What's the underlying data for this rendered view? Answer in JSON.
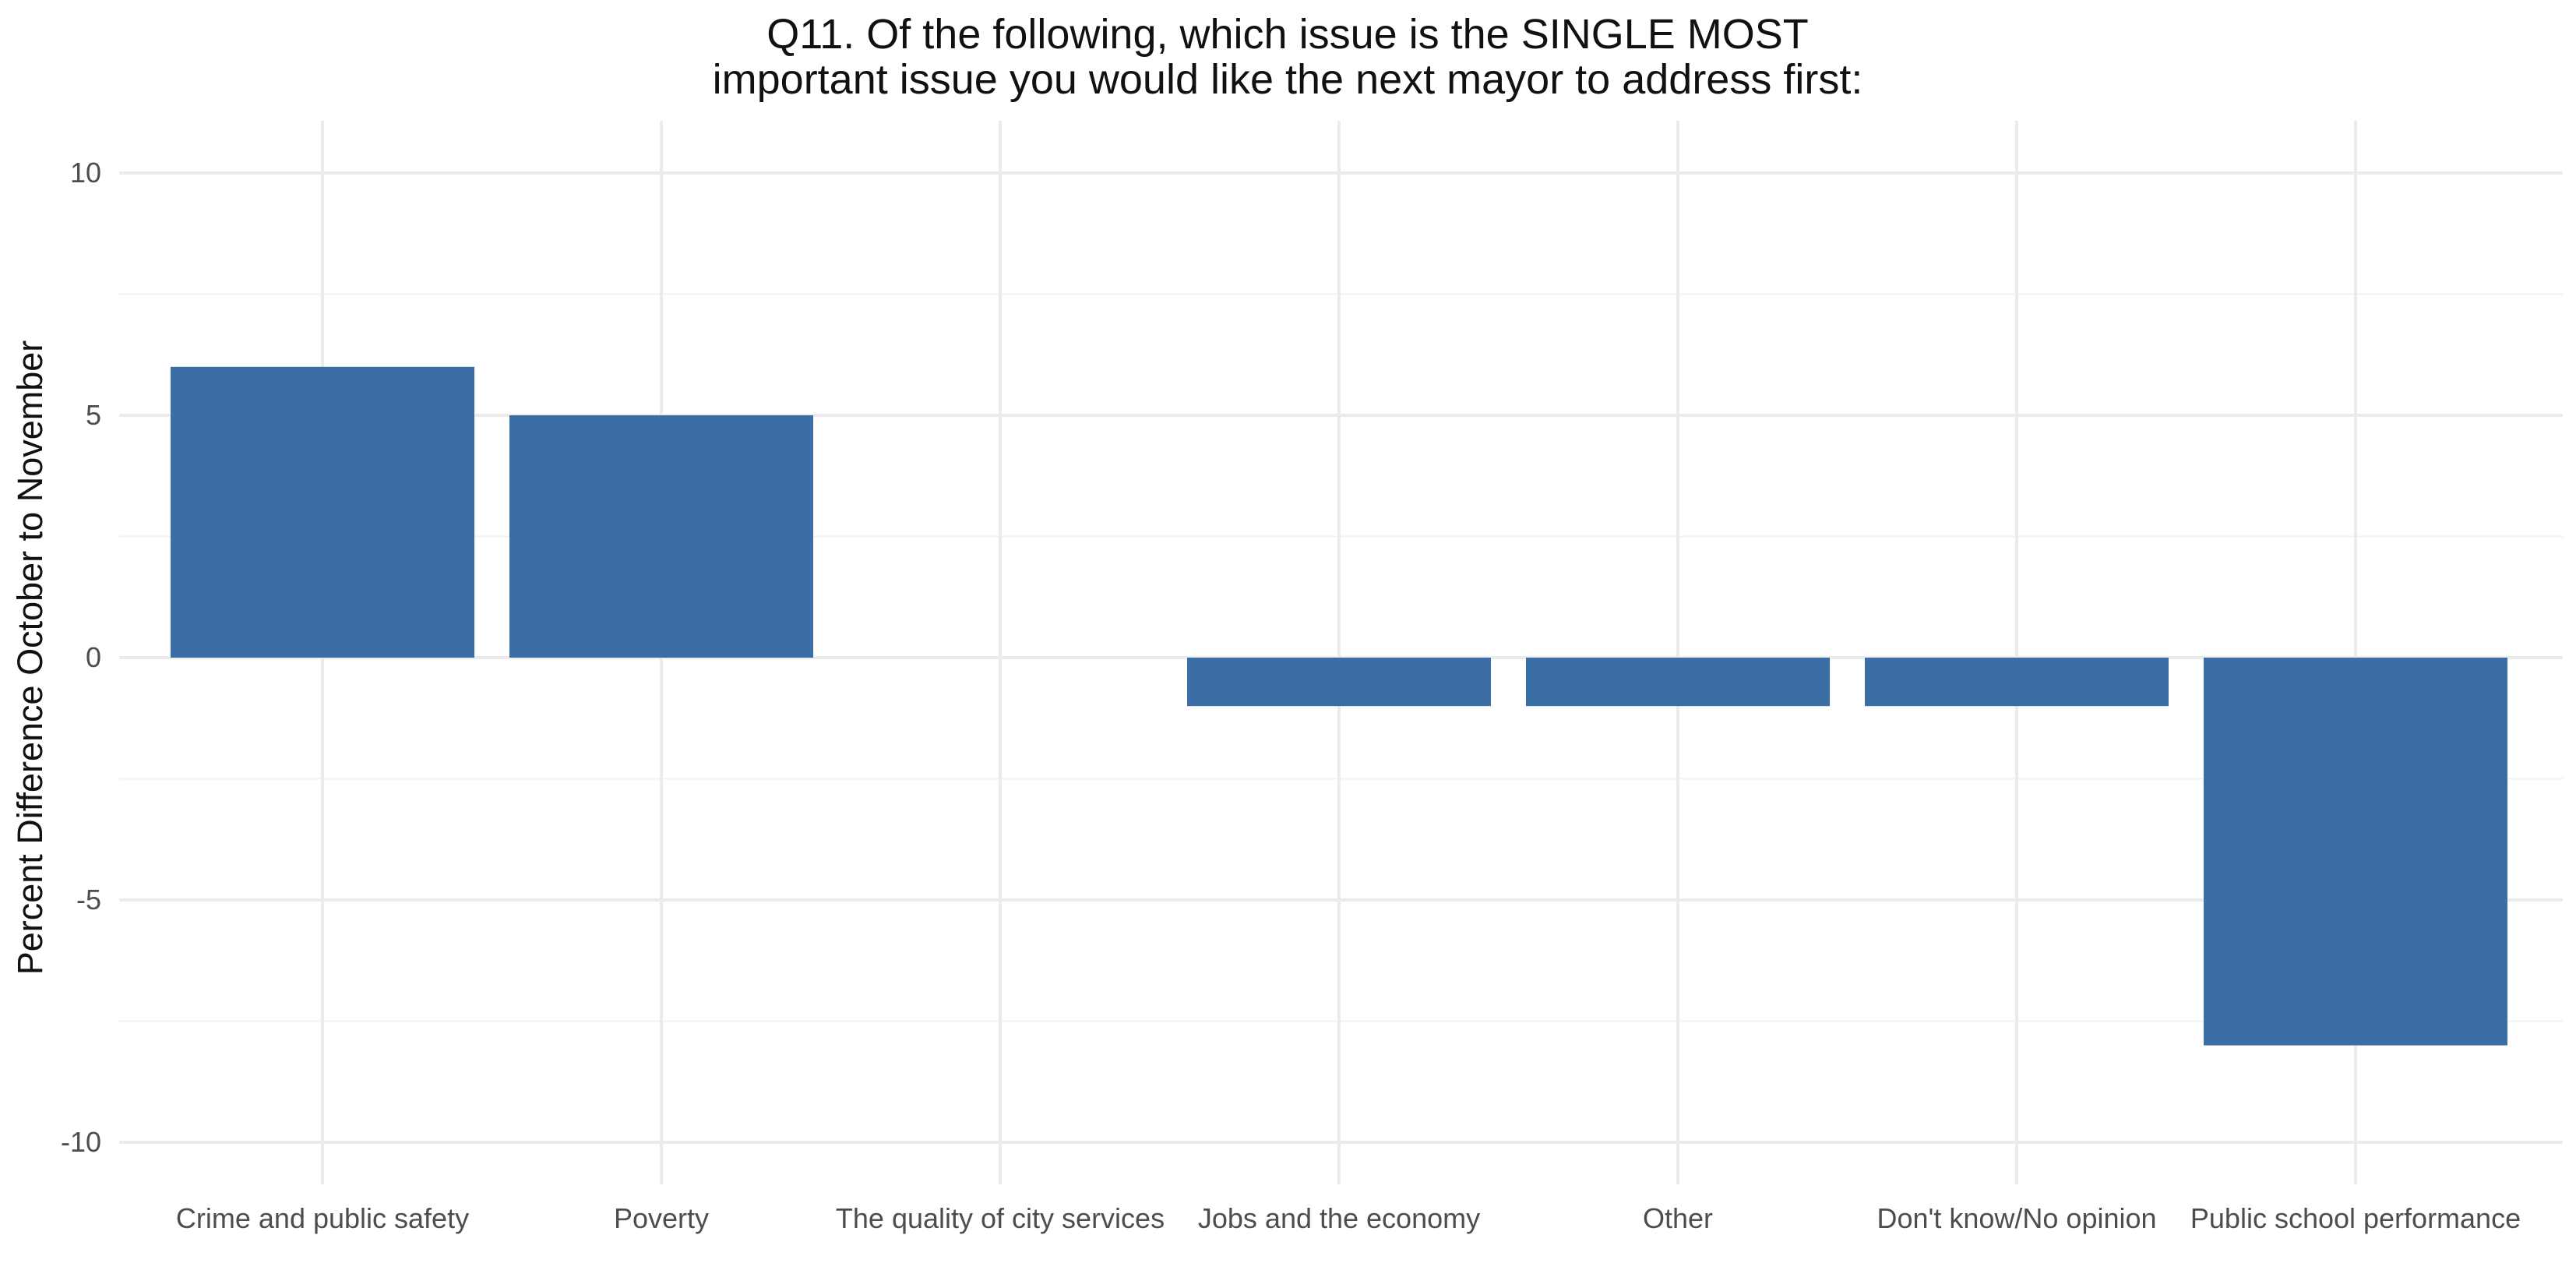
{
  "chart_data": {
    "type": "bar",
    "title_lines": [
      "Q11. Of the following, which issue is the SINGLE MOST",
      "important issue you would like the next mayor to address first:"
    ],
    "xlabel": "",
    "ylabel": "Percent Difference October to November",
    "categories": [
      "Crime and public safety",
      "Poverty",
      "The quality of city services",
      "Jobs and the economy",
      "Other",
      "Don't know/No opinion",
      "Public school performance"
    ],
    "values": [
      6,
      5,
      0,
      -1,
      -1,
      -1,
      -8
    ],
    "ylim": [
      -10,
      10
    ],
    "y_ticks": [
      -10,
      -5,
      0,
      5,
      10
    ],
    "y_tick_labels": [
      "-10",
      "-5",
      "0",
      "5",
      "10"
    ],
    "grid": true,
    "legend": "none",
    "colors": {
      "bar": "#3A6EA5",
      "grid_major": "#EBEBEB",
      "grid_minor": "#F2F2F2",
      "background": "#FFFFFF"
    }
  }
}
